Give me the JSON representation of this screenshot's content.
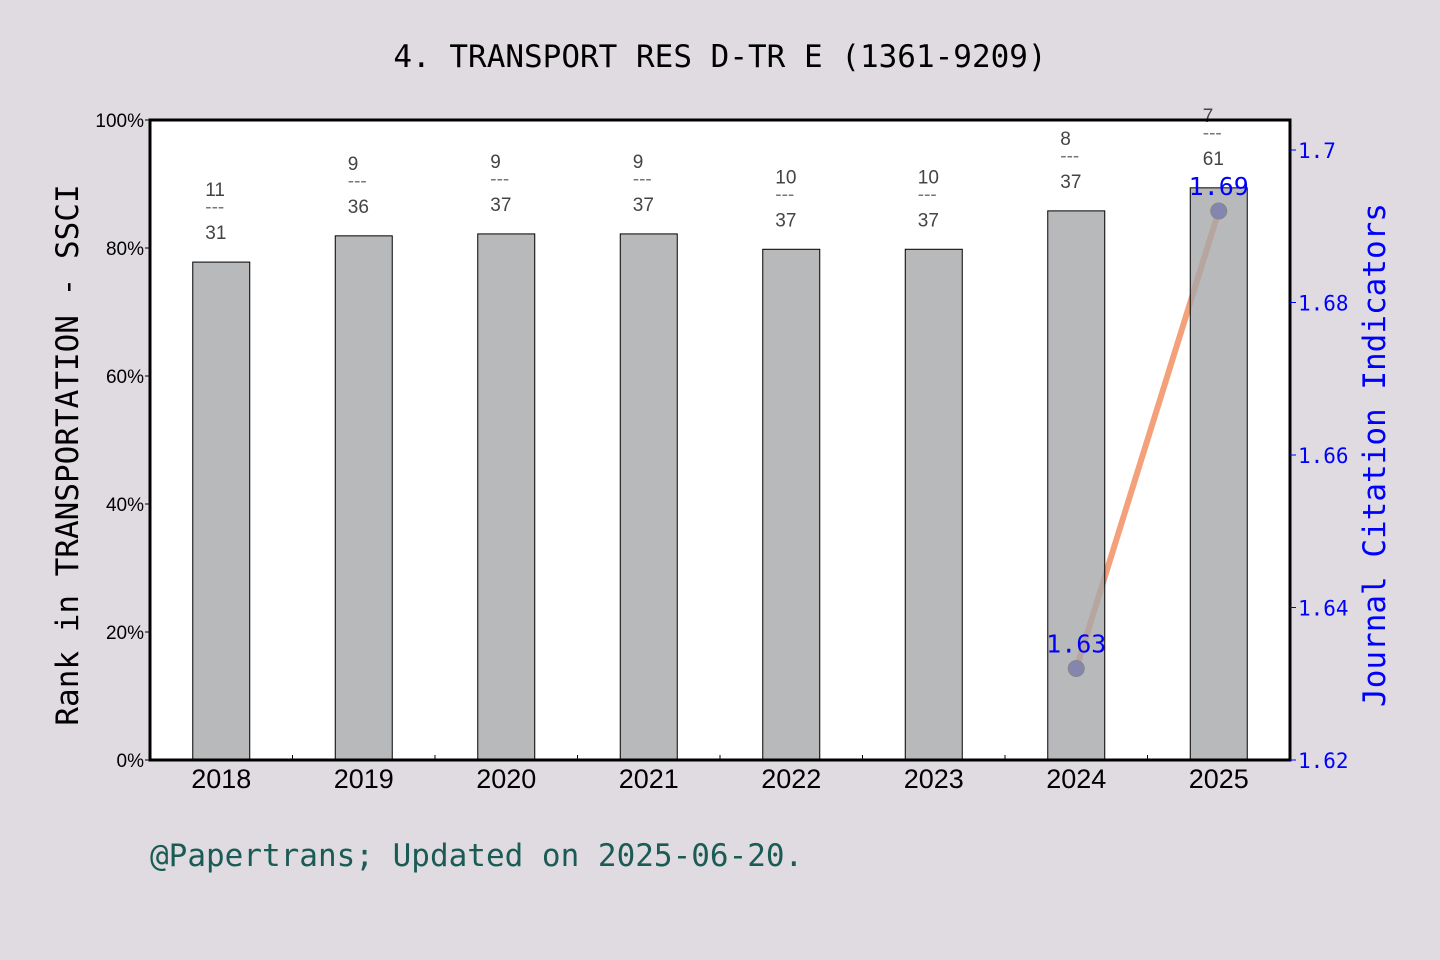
{
  "chart_data": {
    "type": "bar",
    "title": "4. TRANSPORT RES D-TR E (1361-9209)",
    "ylabel": "Rank in TRANSPORTATION - SSCI",
    "y2label": "Journal Citation Indicators",
    "footer": "@Papertrans; Updated on 2025-06-20.",
    "categories": [
      "2018",
      "2019",
      "2020",
      "2021",
      "2022",
      "2023",
      "2024",
      "2025"
    ],
    "ylim": [
      0,
      100
    ],
    "yticks": [
      "0%",
      "20%",
      "40%",
      "60%",
      "80%",
      "100%"
    ],
    "y2lim": [
      1.62,
      1.7
    ],
    "y2ticks": [
      "1.62",
      "1.64",
      "1.66",
      "1.68",
      "1.7"
    ],
    "grid": false,
    "series": [
      {
        "type": "bar",
        "values": [
          77.8,
          81.9,
          82.2,
          82.2,
          79.8,
          79.8,
          85.8,
          89.4
        ],
        "rank": [
          "11",
          "9",
          "9",
          "9",
          "10",
          "10",
          "8",
          "7"
        ],
        "total": [
          "31",
          "36",
          "37",
          "37",
          "37",
          "37",
          "37",
          "61"
        ],
        "color": "#b8b9ba"
      },
      {
        "type": "line",
        "axis": "right",
        "x": [
          "2024",
          "2025"
        ],
        "values": [
          1.632,
          1.692
        ],
        "labels": [
          "1.63",
          "1.69"
        ],
        "line_color": "#f4a07a",
        "marker_color": "#0000c8"
      }
    ],
    "colors": {
      "background": "#dfdbe0",
      "right_axis": "#0000ff",
      "footer": "#1a5c55"
    }
  }
}
